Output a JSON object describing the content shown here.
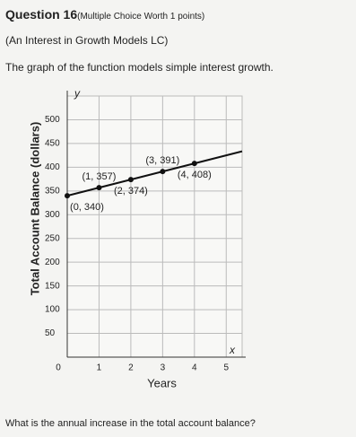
{
  "header": {
    "question": "Question 16",
    "worth": "(Multiple Choice Worth 1 points)",
    "lesson": "(An Interest in Growth Models LC)"
  },
  "prompt": "The graph of the function models simple interest growth.",
  "question": "What is the annual increase in the total account balance?",
  "chart_data": {
    "type": "line",
    "x_label": "Years",
    "y_label": "Total Account Balance (dollars)",
    "x_axis_letter": "x",
    "y_axis_letter": "y",
    "x": [
      0,
      1,
      2,
      3,
      4
    ],
    "values": [
      340,
      357,
      374,
      391,
      408
    ],
    "value_labels": [
      "(0, 340)",
      "(1, 357)",
      "(2, 374)",
      "(3, 391)",
      "(4, 408)"
    ],
    "color": "#111111",
    "xlim": [
      0,
      5.5
    ],
    "ylim": [
      0,
      550
    ],
    "xticks": [
      0,
      1,
      2,
      3,
      4,
      5
    ],
    "yticks": [
      50,
      100,
      150,
      200,
      250,
      300,
      350,
      400,
      450,
      500
    ],
    "grid": true
  }
}
